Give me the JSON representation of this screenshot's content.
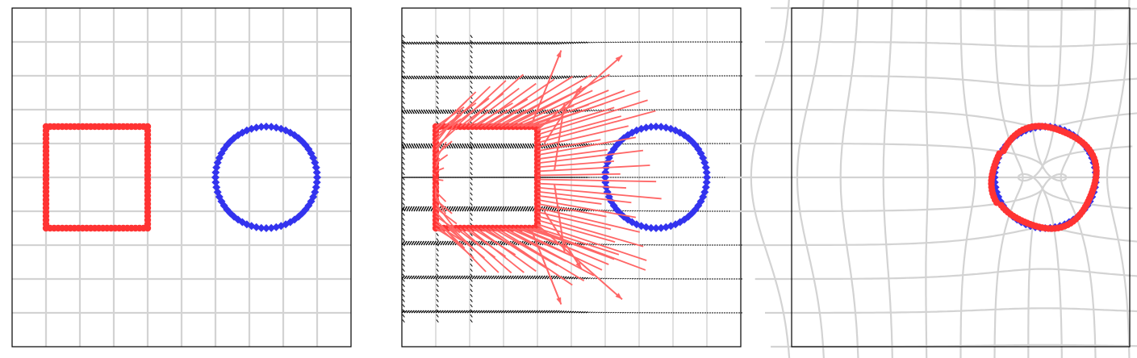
{
  "chart_data": [
    {
      "type": "scatter",
      "panel": "initial",
      "grid": true,
      "axis_ticks": false,
      "xlim": [
        -5,
        5
      ],
      "ylim": [
        -5,
        5
      ],
      "series": [
        {
          "shape": "square",
          "marker": "circle",
          "color": "#ff3333",
          "center": [
            -2.5,
            0
          ],
          "half_size": 1.5,
          "points_per_side": 25
        },
        {
          "shape": "circle",
          "marker": "diamond",
          "color": "#3333ee",
          "center": [
            2.5,
            0
          ],
          "radius": 1.5,
          "points": 64
        }
      ],
      "grid_lines": {
        "x": [
          -4,
          -3,
          -2,
          -1,
          0,
          1,
          2,
          3,
          4
        ],
        "y": [
          -4,
          -3,
          -2,
          -1,
          0,
          1,
          2,
          3,
          4
        ],
        "color": "#d3d3d3"
      }
    },
    {
      "type": "scatter",
      "panel": "displacement-field",
      "grid": true,
      "axis_ticks": false,
      "xlim": [
        -5,
        5
      ],
      "ylim": [
        -5,
        5
      ],
      "series": [
        {
          "shape": "square",
          "marker": "circle",
          "color": "#ff3333",
          "center": [
            -2.5,
            0
          ],
          "half_size": 1.5,
          "points_per_side": 25
        },
        {
          "shape": "circle",
          "marker": "diamond",
          "color": "#3333ee",
          "center": [
            2.5,
            0
          ],
          "radius": 1.5,
          "points": 64
        }
      ],
      "arrows": {
        "color": "#ff6666",
        "source_square": [
          -2.5,
          0
        ],
        "fan_extent": [
          3.25,
          3.75
        ]
      },
      "vector_field": {
        "color": "#000000",
        "rows": [
          -4,
          -3,
          -2,
          -1,
          0,
          1,
          2,
          3,
          4
        ]
      }
    },
    {
      "type": "scatter",
      "panel": "warped",
      "grid": true,
      "axis_ticks": false,
      "xlim": [
        -5,
        5
      ],
      "ylim": [
        -5,
        5
      ],
      "series": [
        {
          "shape": "circle",
          "marker": "diamond",
          "color": "#3333ee",
          "center": [
            2.5,
            0
          ],
          "radius": 1.5,
          "points": 64
        },
        {
          "shape": "warped-square",
          "marker": "circle",
          "color": "#ff3333",
          "center": [
            2.5,
            0
          ],
          "radius": 1.5
        }
      ],
      "grid_lines": {
        "warped": true,
        "color": "#d3d3d3"
      }
    }
  ]
}
